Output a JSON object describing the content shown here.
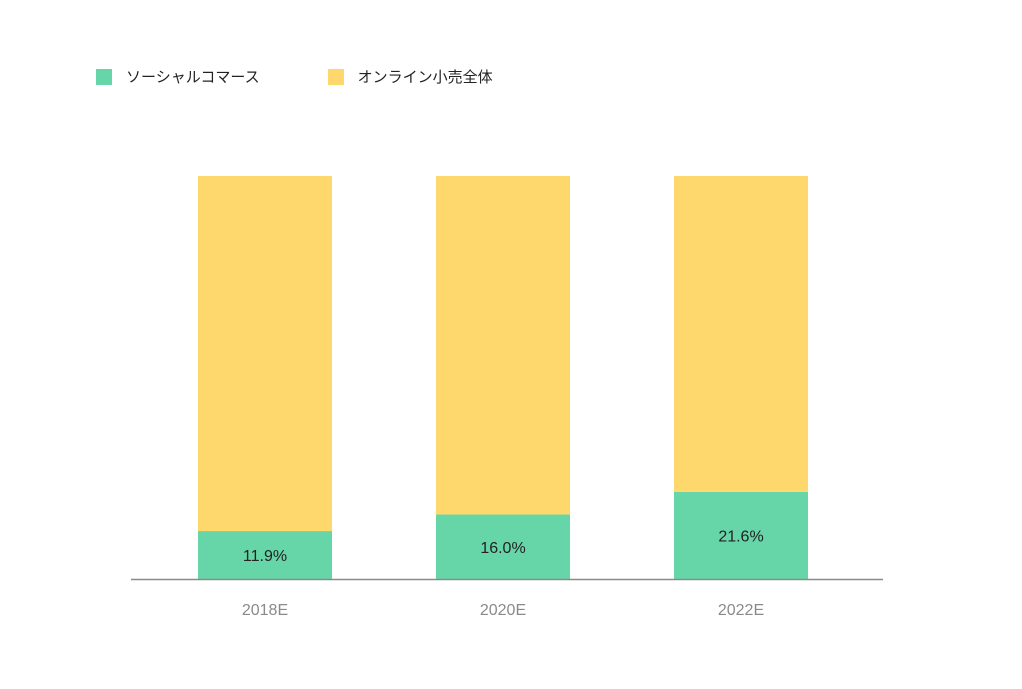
{
  "chart_data": {
    "type": "bar",
    "stacked": true,
    "normalized_percent": true,
    "categories": [
      "2018E",
      "2020E",
      "2022E"
    ],
    "series": [
      {
        "name": "ソーシャルコマース",
        "values": [
          11.9,
          16.0,
          21.6
        ],
        "color": "#66d6a8",
        "labels": [
          "11.9%",
          "16.0%",
          "21.6%"
        ]
      },
      {
        "name": "オンライン小売全体",
        "values": [
          88.1,
          84.0,
          78.4
        ],
        "color": "#fed86c"
      }
    ],
    "ylim": [
      0,
      100
    ],
    "grid": false,
    "legend_position": "top-left",
    "axis_color": "#8a8a8a"
  }
}
